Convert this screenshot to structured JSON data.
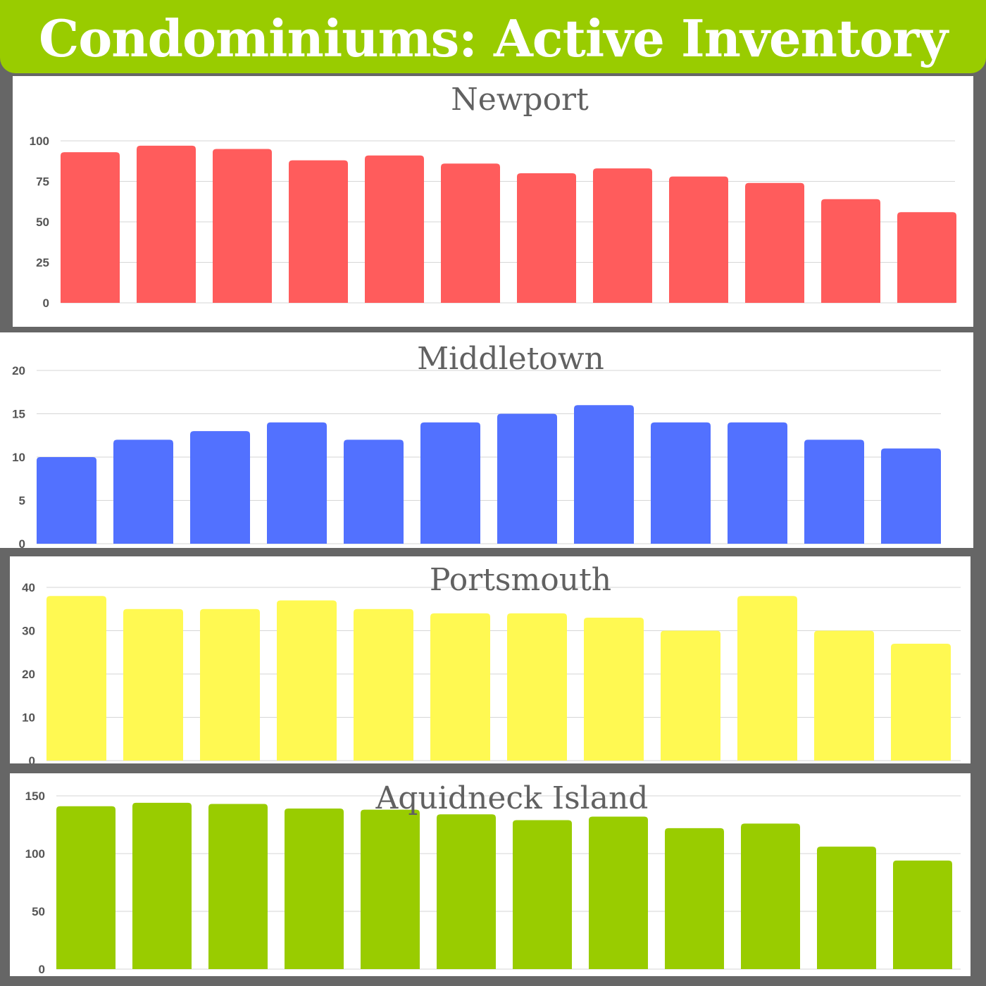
{
  "header": {
    "title": "Condominiums: Active Inventory"
  },
  "chart_data": [
    {
      "type": "bar",
      "title": "Newport",
      "color": "#ff5c5c",
      "ylim": [
        0,
        100
      ],
      "yticks": [
        0,
        25,
        50,
        75,
        100
      ],
      "grid": true,
      "values": [
        93,
        97,
        95,
        88,
        91,
        86,
        80,
        83,
        78,
        74,
        64,
        56
      ]
    },
    {
      "type": "bar",
      "title": "Middletown",
      "color": "#5271ff",
      "ylim": [
        0,
        20
      ],
      "yticks": [
        0,
        5,
        10,
        15,
        20
      ],
      "grid": true,
      "values": [
        10,
        12,
        13,
        14,
        12,
        14,
        15,
        16,
        14,
        14,
        12,
        11
      ]
    },
    {
      "type": "bar",
      "title": "Portsmouth",
      "color": "#fff952",
      "ylim": [
        0,
        40
      ],
      "yticks": [
        0,
        10,
        20,
        30,
        40
      ],
      "grid": true,
      "values": [
        38,
        35,
        35,
        37,
        35,
        34,
        34,
        33,
        30,
        38,
        30,
        27
      ]
    },
    {
      "type": "bar",
      "title": "Aquidneck Island",
      "color": "#99cc00",
      "ylim": [
        0,
        150
      ],
      "yticks": [
        0,
        50,
        100,
        150
      ],
      "grid": true,
      "values": [
        141,
        144,
        143,
        139,
        138,
        134,
        129,
        132,
        122,
        126,
        106,
        94
      ]
    }
  ]
}
